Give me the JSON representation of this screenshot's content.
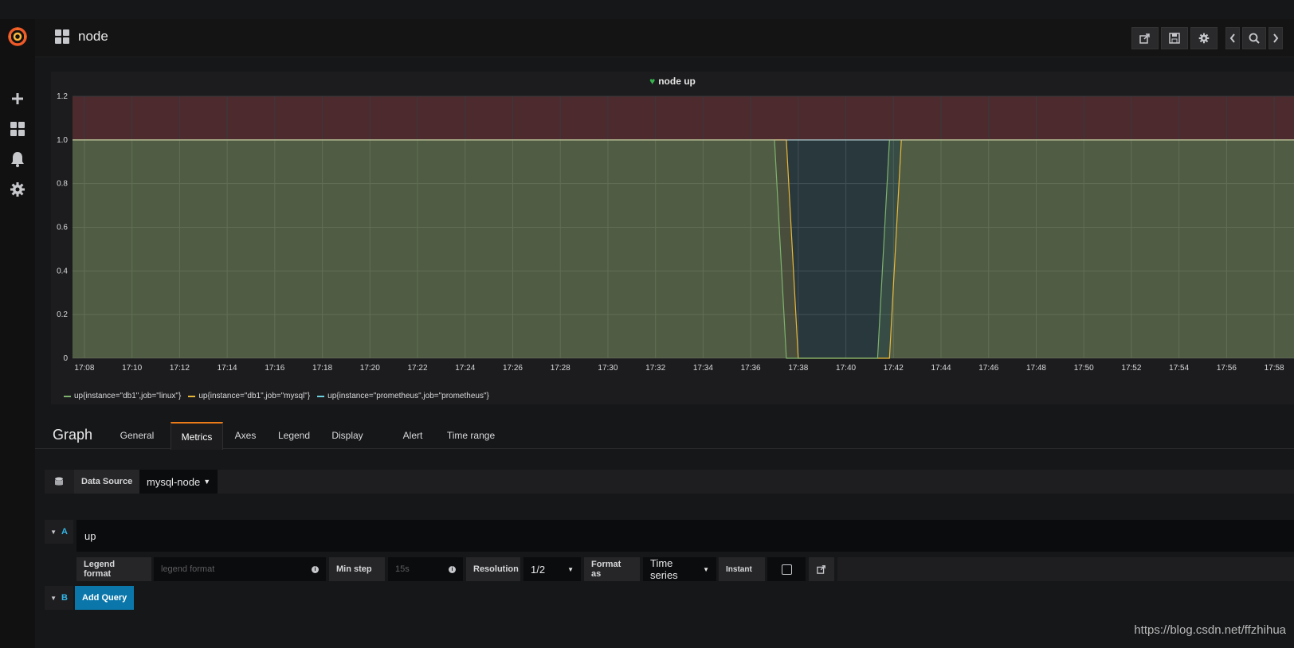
{
  "navbar": {
    "dashboard_title": "node"
  },
  "sidemenu": {
    "items": [
      "plus-icon",
      "dashboards-icon",
      "bell-icon",
      "gear-icon"
    ]
  },
  "panel": {
    "title": "node up"
  },
  "chart_data": {
    "type": "line",
    "title": "node up",
    "xlabel": "",
    "ylabel": "",
    "ylim": [
      0,
      1.2
    ],
    "yticks": [
      "0",
      "0.2",
      "0.4",
      "0.6",
      "0.8",
      "1.0",
      "1.2"
    ],
    "xticks": [
      "17:08",
      "17:10",
      "17:12",
      "17:14",
      "17:16",
      "17:18",
      "17:20",
      "17:22",
      "17:24",
      "17:26",
      "17:28",
      "17:30",
      "17:32",
      "17:34",
      "17:36",
      "17:38",
      "17:40",
      "17:42",
      "17:44",
      "17:46",
      "17:48",
      "17:50",
      "17:52",
      "17:54",
      "17:56",
      "17:58"
    ],
    "xlim_minutes": [
      "17:07:30",
      "17:58:50"
    ],
    "threshold": {
      "value": 1.0,
      "region": "above",
      "color": "#4d2a2e"
    },
    "series": [
      {
        "name": "up{instance=\"db1\",job=\"linux\"}",
        "color": "#7eb26d",
        "x": [
          "17:07:30",
          "17:37:00",
          "17:37:30",
          "17:41:20",
          "17:41:50",
          "17:58:50"
        ],
        "values": [
          1,
          1,
          0,
          0,
          1,
          1
        ]
      },
      {
        "name": "up{instance=\"db1\",job=\"mysql\"}",
        "color": "#eab839",
        "x": [
          "17:07:30",
          "17:37:30",
          "17:38:00",
          "17:41:50",
          "17:42:20",
          "17:58:50"
        ],
        "values": [
          1,
          1,
          0,
          0,
          1,
          1
        ]
      },
      {
        "name": "up{instance=\"prometheus\",job=\"prometheus\"}",
        "color": "#6ed0e0",
        "x": [
          "17:07:30",
          "17:58:50"
        ],
        "values": [
          1,
          1
        ]
      }
    ],
    "grid": true,
    "legend": "bottom-left"
  },
  "editor": {
    "title": "Graph",
    "tabs": [
      "General",
      "Metrics",
      "Axes",
      "Legend",
      "Display",
      "Alert",
      "Time range"
    ],
    "active_tab": "Metrics"
  },
  "datasource": {
    "label": "Data Source",
    "value": "mysql-node"
  },
  "queries": [
    {
      "ref": "A",
      "expr": "up",
      "legend_format_label": "Legend format",
      "legend_format_placeholder": "legend format",
      "min_step_label": "Min step",
      "min_step_placeholder": "15s",
      "resolution_label": "Resolution",
      "resolution_value": "1/2",
      "format_as_label": "Format as",
      "format_as_value": "Time series",
      "instant_label": "Instant"
    }
  ],
  "query_b": {
    "ref": "B",
    "add_label": "Add Query"
  },
  "watermark": "https://blog.csdn.net/ffzhihua"
}
